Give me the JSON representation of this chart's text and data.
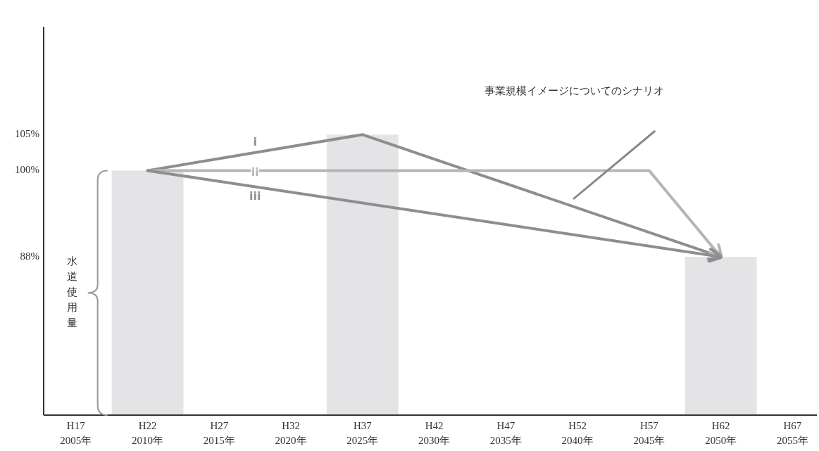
{
  "chart_data": {
    "type": "bar",
    "categories": [
      "H17\n2005年",
      "H22\n2010年",
      "H27\n2015年",
      "H32\n2020年",
      "H37\n2025年",
      "H42\n2030年",
      "H47\n2035年",
      "H52\n2040年",
      "H57\n2045年",
      "H62\n2050年",
      "H67\n2055年"
    ],
    "values": [
      null,
      100,
      null,
      null,
      105,
      null,
      null,
      null,
      null,
      88,
      null
    ],
    "color": "#e4e4e6",
    "ylim": [
      66,
      120
    ],
    "yticks": [
      {
        "value": 88,
        "label": "88%"
      },
      {
        "value": 100,
        "label": "100%"
      },
      {
        "value": 105,
        "label": "105%"
      }
    ],
    "series": [
      {
        "name": "i",
        "type": "line",
        "color": "#8e8e90",
        "values": [
          null,
          100,
          null,
          null,
          105,
          null,
          null,
          null,
          null,
          88,
          null
        ]
      },
      {
        "name": "ii",
        "type": "line",
        "color": "#b5b5b7",
        "values": [
          null,
          100,
          null,
          null,
          null,
          null,
          null,
          null,
          100,
          88,
          null
        ]
      },
      {
        "name": "iii",
        "type": "line",
        "color": "#8e8e90",
        "values": [
          null,
          100,
          null,
          null,
          null,
          null,
          null,
          null,
          null,
          88,
          null
        ]
      }
    ],
    "grid": false,
    "marker": "none",
    "line_style": "solid",
    "annotations": [
      "事業規模イメージについてのシナリオ",
      "水道使用量"
    ]
  }
}
